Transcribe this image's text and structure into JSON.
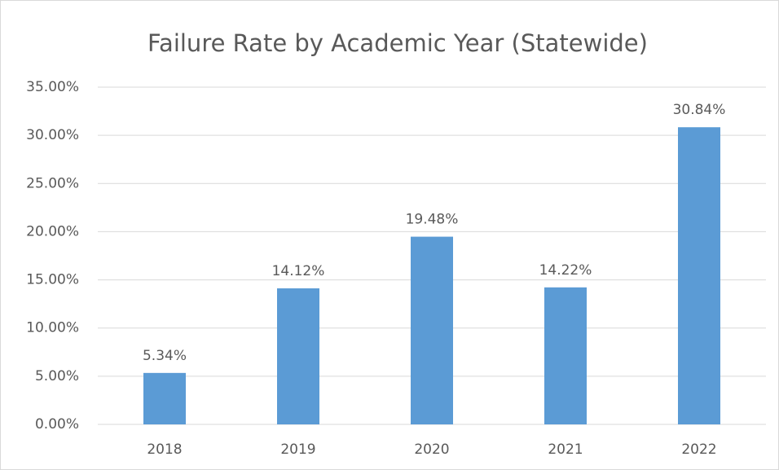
{
  "chart_data": {
    "type": "bar",
    "title": "Failure Rate by Academic Year (Statewide)",
    "categories": [
      "2018",
      "2019",
      "2020",
      "2021",
      "2022"
    ],
    "values": [
      5.34,
      14.12,
      19.48,
      14.22,
      30.84
    ],
    "value_labels": [
      "5.34%",
      "14.12%",
      "19.48%",
      "14.22%",
      "30.84%"
    ],
    "color": "#5b9bd5",
    "ylim": [
      0,
      35
    ],
    "yticks": [
      {
        "value": 0,
        "label": "0.00%"
      },
      {
        "value": 5,
        "label": "5.00%"
      },
      {
        "value": 10,
        "label": "10.00%"
      },
      {
        "value": 15,
        "label": "15.00%"
      },
      {
        "value": 20,
        "label": "20.00%"
      },
      {
        "value": 25,
        "label": "25.00%"
      },
      {
        "value": 30,
        "label": "30.00%"
      },
      {
        "value": 35,
        "label": "35.00%"
      }
    ],
    "grid": true
  }
}
